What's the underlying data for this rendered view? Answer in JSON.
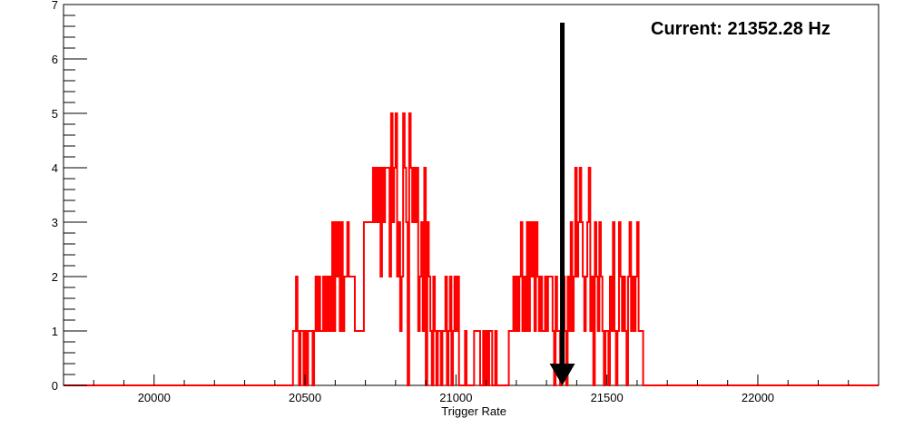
{
  "chart_data": {
    "type": "histogram",
    "title": "",
    "xlabel": "Trigger Rate",
    "ylabel": "",
    "xlim": [
      19700,
      22400
    ],
    "ylim": [
      0,
      7
    ],
    "x_ticks": [
      20000,
      20500,
      21000,
      21500,
      22000
    ],
    "y_ticks": [
      0,
      1,
      2,
      3,
      4,
      5,
      6,
      7
    ],
    "grid": false,
    "line_color": "#ff0000",
    "annotation": {
      "text": "Current: 21352.28 Hz",
      "arrow_x": 21352.28,
      "arrow_color": "#000000"
    },
    "bin_width": 5,
    "first_bin": 20460,
    "counts": [
      1,
      1,
      2,
      1,
      0,
      1,
      1,
      0,
      1,
      0,
      1,
      1,
      1,
      0,
      1,
      2,
      1,
      2,
      1,
      1,
      2,
      1,
      2,
      1,
      2,
      1,
      3,
      1,
      3,
      2,
      3,
      1,
      3,
      1,
      2,
      2,
      3,
      2,
      2,
      2,
      2,
      1,
      1,
      1,
      1,
      1,
      1,
      3,
      3,
      3,
      3,
      3,
      3,
      4,
      3,
      4,
      3,
      4,
      2,
      4,
      3,
      4,
      4,
      4,
      2,
      5,
      3,
      4,
      5,
      2,
      3,
      1,
      2,
      5,
      4,
      3,
      0,
      5,
      4,
      3,
      4,
      3,
      4,
      1,
      2,
      3,
      1,
      4,
      0,
      3,
      2,
      1,
      0,
      2,
      1,
      0,
      1,
      1,
      0,
      1,
      1,
      2,
      0,
      1,
      2,
      0,
      1,
      2,
      1,
      2,
      0,
      0,
      0,
      0,
      1,
      0,
      0,
      0,
      0,
      0,
      1,
      1,
      1,
      1,
      0,
      0,
      1,
      0,
      1,
      0,
      1,
      1,
      0,
      0,
      1,
      0,
      0,
      0,
      0,
      0,
      0,
      0,
      0,
      1,
      1,
      1,
      2,
      1,
      2,
      1,
      2,
      3,
      1,
      2,
      1,
      3,
      1,
      3,
      2,
      3,
      1,
      3,
      2,
      1,
      2,
      1,
      1,
      2,
      1,
      2,
      2,
      2,
      1,
      0,
      2,
      1,
      1,
      0,
      1,
      2,
      1,
      0,
      2,
      1,
      3,
      1,
      2,
      4,
      2,
      3,
      4,
      3,
      2,
      1,
      2,
      3,
      4,
      1,
      2,
      0,
      3,
      2,
      1,
      3,
      2,
      1,
      0,
      1,
      1,
      0,
      2,
      1,
      3,
      1,
      0,
      1,
      3,
      2,
      1,
      2,
      1,
      0,
      2,
      3,
      1,
      2,
      1,
      2,
      3,
      1,
      1,
      1
    ]
  }
}
